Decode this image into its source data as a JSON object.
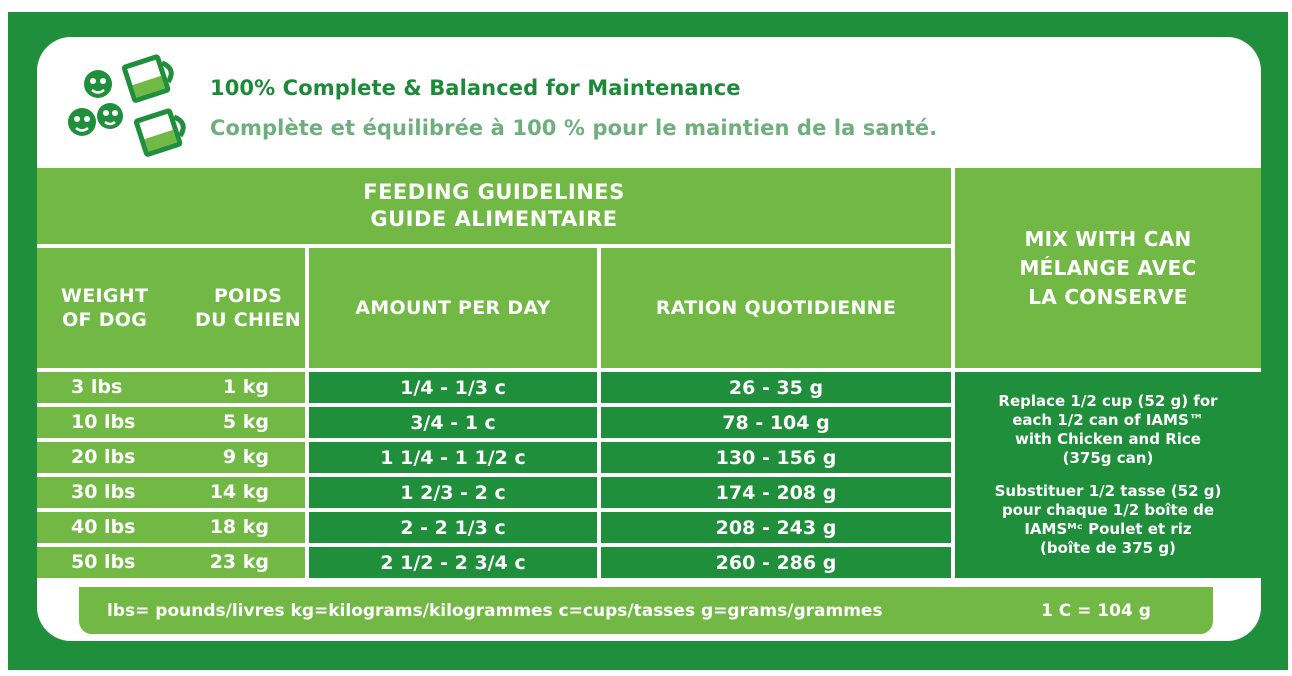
{
  "header": {
    "title_en": "100% Complete & Balanced for Maintenance",
    "title_fr": "Complète et équilibrée à 100 % pour le maintien de la santé.",
    "icons": [
      "dog-face-icon",
      "measuring-cup-icon",
      "dog-face-icon",
      "measuring-cup-icon"
    ]
  },
  "table": {
    "title_en": "FEEDING GUIDELINES",
    "title_fr": "GUIDE ALIMENTAIRE",
    "col_weight_en": [
      "WEIGHT",
      "OF DOG"
    ],
    "col_weight_fr": [
      "POIDS",
      "DU CHIEN"
    ],
    "col_amount": "AMOUNT PER DAY",
    "col_ration": "RATION QUOTIDIENNE",
    "mix_header": [
      "MIX WITH CAN",
      "MÉLANGE AVEC",
      "LA CONSERVE"
    ],
    "rows": [
      {
        "lbs": "3 lbs",
        "kg": "1 kg",
        "cups": "1/4 - 1/3 c",
        "grams": "26 - 35 g"
      },
      {
        "lbs": "10 lbs",
        "kg": "5 kg",
        "cups": "3/4 - 1 c",
        "grams": "78 - 104 g"
      },
      {
        "lbs": "20 lbs",
        "kg": "9 kg",
        "cups": "1 1/4 - 1 1/2 c",
        "grams": "130 - 156 g"
      },
      {
        "lbs": "30 lbs",
        "kg": "14 kg",
        "cups": "1 2/3 - 2 c",
        "grams": "174 - 208 g"
      },
      {
        "lbs": "40 lbs",
        "kg": "18 kg",
        "cups": "2 - 2 1/3 c",
        "grams": "208 - 243 g"
      },
      {
        "lbs": "50 lbs",
        "kg": "23 kg",
        "cups": "2 1/2 - 2 3/4 c",
        "grams": "260 - 286 g"
      }
    ],
    "mix_note_en": [
      "Replace 1/2 cup (52 g) for",
      "each 1/2 can of IAMS™",
      "with Chicken and Rice",
      "(375g can)"
    ],
    "mix_note_fr": [
      "Substituer 1/2 tasse (52 g)",
      "pour chaque 1/2 boîte de",
      "IAMSᴹᶜ Poulet et riz",
      "(boîte de 375 g)"
    ]
  },
  "footer": {
    "units": "lbs= pounds/livres kg=kilograms/kilogrammes c=cups/tasses g=grams/grammes",
    "conversion": "1 C = 104 g"
  },
  "colors": {
    "dark_green": "#1f8f3c",
    "light_green": "#71b944",
    "title_green": "#1d8a3a",
    "subtitle_green": "#6fae7d"
  }
}
